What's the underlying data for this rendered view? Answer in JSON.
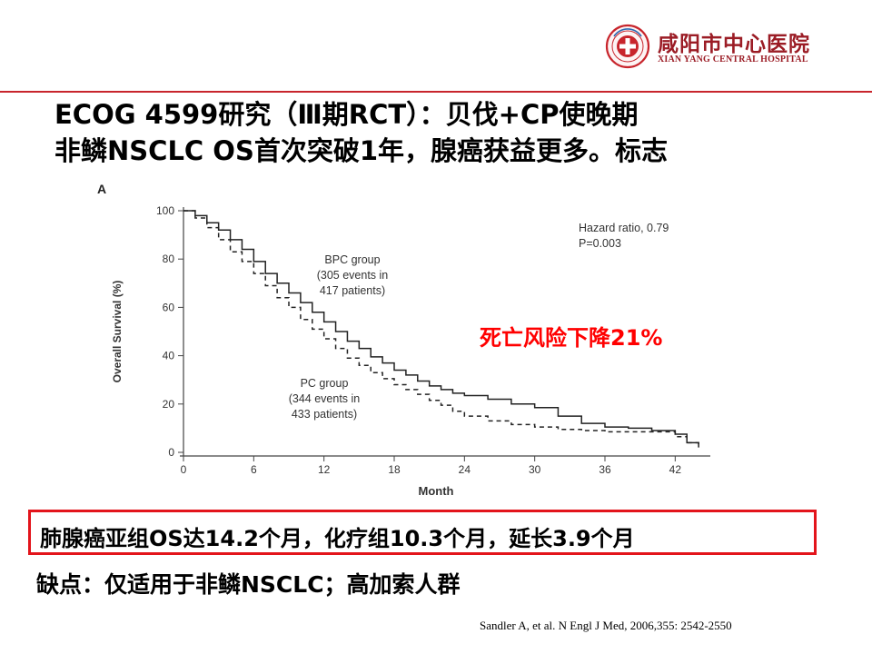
{
  "header": {
    "hospital_name_cn": "咸阳市中心医院",
    "hospital_name_en": "XIAN YANG CENTRAL HOSPITAL",
    "accent_color": "#c8252c"
  },
  "slide": {
    "title_line1": "ECOG 4599研究（Ⅲ期RCT）：贝伐+CP使晚期",
    "title_line2": "非鳞NSCLC OS首次突破1年，腺癌获益更多。标志",
    "risk_note": "死亡风险下降21%",
    "result": "肺腺癌亚组OS达14.2个月，化疗组10.3个月，延长3.9个月",
    "drawback": "缺点：仅适用于非鳞NSCLC；高加索人群",
    "citation": "Sandler A, et al. N Engl J Med, 2006,355: 2542-2550"
  },
  "chart_data": {
    "type": "line",
    "panel_label": "A",
    "title": "",
    "xlabel": "Month",
    "ylabel": "Overall Survival (%)",
    "xlim": [
      0,
      45
    ],
    "ylim": [
      0,
      100
    ],
    "xticks": [
      0,
      6,
      12,
      18,
      24,
      30,
      36,
      42
    ],
    "yticks": [
      0,
      20,
      40,
      60,
      80,
      100
    ],
    "grid": false,
    "hazard_ratio_line1": "Hazard ratio, 0.79",
    "hazard_ratio_line2": "P=0.003",
    "series": [
      {
        "name": "BPC group",
        "label_lines": [
          "BPC group",
          "(305 events in",
          "417 patients)"
        ],
        "style": "solid",
        "x": [
          0,
          1,
          2,
          3,
          4,
          5,
          6,
          7,
          8,
          9,
          10,
          11,
          12,
          13,
          14,
          15,
          16,
          17,
          18,
          19,
          20,
          21,
          22,
          23,
          24,
          26,
          28,
          30,
          32,
          34,
          36,
          38,
          40,
          42,
          43,
          44
        ],
        "y": [
          100,
          98,
          95,
          92,
          88,
          84,
          79,
          74,
          70,
          66,
          62,
          58,
          54,
          50,
          46,
          43,
          39.5,
          37,
          34,
          32,
          29.5,
          27.5,
          26,
          24.5,
          23.5,
          22,
          20,
          18.5,
          15,
          12,
          10.5,
          10,
          9,
          7.5,
          4,
          2
        ]
      },
      {
        "name": "PC group",
        "label_lines": [
          "PC group",
          "(344 events in",
          "433 patients)"
        ],
        "style": "dashed",
        "x": [
          0,
          1,
          2,
          3,
          4,
          5,
          6,
          7,
          8,
          9,
          10,
          11,
          12,
          13,
          14,
          15,
          16,
          17,
          18,
          19,
          20,
          21,
          22,
          23,
          24,
          26,
          28,
          30,
          32,
          34,
          36,
          38,
          40,
          42,
          43,
          44
        ],
        "y": [
          100,
          97,
          93,
          88,
          83,
          79,
          74,
          69,
          64,
          60,
          55,
          51,
          47,
          43,
          39,
          36,
          33,
          30.5,
          28,
          26,
          24,
          21.5,
          19.5,
          17,
          15,
          13,
          11.5,
          10.5,
          9.5,
          9,
          8.5,
          8.5,
          8.5,
          6.5,
          4,
          3
        ]
      }
    ]
  }
}
